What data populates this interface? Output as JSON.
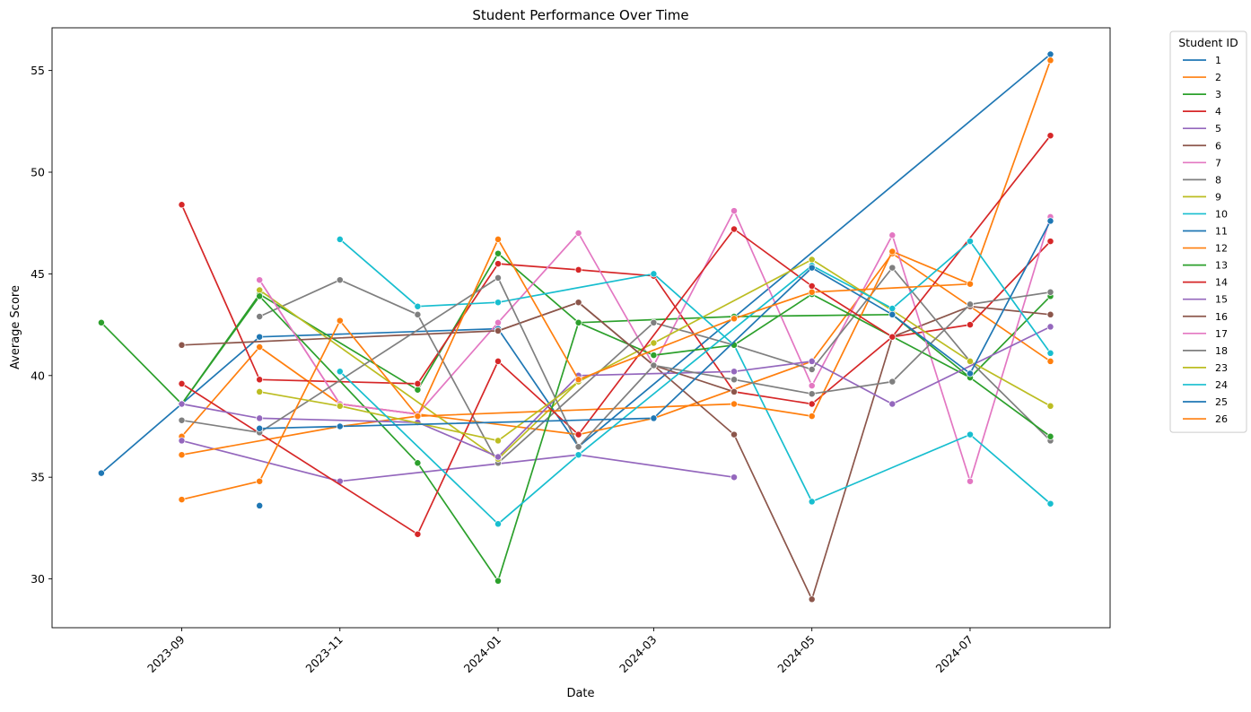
{
  "chart_data": {
    "type": "line",
    "title": "Student Performance Over Time",
    "xlabel": "Date",
    "ylabel": "Average Score",
    "x_tick_labels": [
      "2023-09",
      "2023-11",
      "2024-01",
      "2024-03",
      "2024-05",
      "2024-07"
    ],
    "x_tick_dates": [
      "2023-09-01",
      "2023-11-01",
      "2024-01-01",
      "2024-03-01",
      "2024-05-01",
      "2024-07-01"
    ],
    "y_ticks": [
      30,
      35,
      40,
      45,
      50,
      55
    ],
    "xlim": [
      "2023-07-13",
      "2024-08-24"
    ],
    "ylim": [
      27.6,
      57.1
    ],
    "grid": false,
    "marker": "circle",
    "legend": {
      "title": "Student ID",
      "placement": "outside-right"
    },
    "series": [
      {
        "name": "1",
        "color": "#1f77b4",
        "points": [
          [
            "2023-08-01",
            35.2
          ],
          [
            "2023-10-01",
            41.9
          ],
          [
            "2024-01-01",
            42.3
          ],
          [
            "2024-02-01",
            36.5
          ],
          [
            "2024-08-01",
            55.8
          ]
        ]
      },
      {
        "name": "2",
        "color": "#ff7f0e",
        "points": [
          [
            "2023-09-01",
            37.0
          ],
          [
            "2023-10-01",
            41.4
          ],
          [
            "2023-11-01",
            38.6
          ],
          [
            "2023-12-01",
            38.1
          ],
          [
            "2024-02-01",
            37.1
          ],
          [
            "2024-03-01",
            37.9
          ],
          [
            "2024-05-01",
            40.7
          ],
          [
            "2024-06-01",
            46.0
          ],
          [
            "2024-07-01",
            43.4
          ],
          [
            "2024-08-01",
            40.7
          ]
        ]
      },
      {
        "name": "3",
        "color": "#2ca02c",
        "points": [
          [
            "2023-08-01",
            42.6
          ],
          [
            "2023-09-01",
            38.6
          ],
          [
            "2023-10-01",
            44.0
          ],
          [
            "2023-12-01",
            39.3
          ],
          [
            "2024-01-01",
            46.0
          ],
          [
            "2024-02-01",
            42.6
          ],
          [
            "2024-04-01",
            42.9
          ],
          [
            "2024-06-01",
            43.0
          ],
          [
            "2024-07-01",
            39.9
          ],
          [
            "2024-08-01",
            43.9
          ]
        ]
      },
      {
        "name": "4",
        "color": "#d62728",
        "points": [
          [
            "2023-09-01",
            48.4
          ],
          [
            "2023-10-01",
            39.8
          ],
          [
            "2023-12-01",
            39.6
          ],
          [
            "2024-01-01",
            45.5
          ],
          [
            "2024-02-01",
            45.2
          ],
          [
            "2024-03-01",
            44.9
          ],
          [
            "2024-04-01",
            39.2
          ],
          [
            "2024-05-01",
            38.6
          ],
          [
            "2024-06-01",
            41.9
          ],
          [
            "2024-07-01",
            42.5
          ],
          [
            "2024-08-01",
            46.6
          ]
        ]
      },
      {
        "name": "5",
        "color": "#9467bd",
        "points": [
          [
            "2023-09-01",
            36.8
          ],
          [
            "2023-11-01",
            34.8
          ],
          [
            "2024-02-01",
            36.1
          ],
          [
            "2024-04-01",
            35.0
          ]
        ]
      },
      {
        "name": "6",
        "color": "#8c564b",
        "points": [
          [
            "2024-01-01",
            42.2
          ],
          [
            "2024-02-01",
            43.6
          ],
          [
            "2024-03-01",
            40.5
          ],
          [
            "2024-04-01",
            37.1
          ],
          [
            "2024-05-01",
            29.0
          ],
          [
            "2024-06-01",
            41.9
          ],
          [
            "2024-07-01",
            43.4
          ],
          [
            "2024-08-01",
            43.0
          ]
        ]
      },
      {
        "name": "7",
        "color": "#e377c2",
        "points": [
          [
            "2023-10-01",
            44.7
          ],
          [
            "2023-11-01",
            38.6
          ],
          [
            "2023-12-01",
            38.1
          ],
          [
            "2024-01-01",
            42.6
          ],
          [
            "2024-02-01",
            47.0
          ],
          [
            "2024-03-01",
            40.5
          ],
          [
            "2024-04-01",
            48.1
          ],
          [
            "2024-05-01",
            39.5
          ],
          [
            "2024-06-01",
            46.9
          ],
          [
            "2024-07-01",
            34.8
          ],
          [
            "2024-08-01",
            47.8
          ]
        ]
      },
      {
        "name": "8",
        "color": "#7f7f7f",
        "points": [
          [
            "2023-10-01",
            42.9
          ],
          [
            "2023-11-01",
            44.7
          ],
          [
            "2023-12-01",
            43.0
          ],
          [
            "2024-01-01",
            35.7
          ],
          [
            "2024-03-01",
            42.6
          ],
          [
            "2024-04-01",
            41.5
          ],
          [
            "2024-05-01",
            40.3
          ],
          [
            "2024-06-01",
            45.3
          ],
          [
            "2024-07-01",
            40.7
          ],
          [
            "2024-08-01",
            36.8
          ]
        ]
      },
      {
        "name": "9",
        "color": "#bcbd22",
        "points": [
          [
            "2023-10-01",
            44.2
          ],
          [
            "2024-01-01",
            35.9
          ],
          [
            "2024-02-01",
            39.7
          ],
          [
            "2024-03-01",
            41.6
          ],
          [
            "2024-05-01",
            45.7
          ],
          [
            "2024-06-01",
            43.2
          ],
          [
            "2024-07-01",
            40.7
          ],
          [
            "2024-08-01",
            38.5
          ]
        ]
      },
      {
        "name": "10",
        "color": "#17becf",
        "points": [
          [
            "2023-11-01",
            46.7
          ],
          [
            "2023-12-01",
            43.4
          ],
          [
            "2024-01-01",
            43.6
          ],
          [
            "2024-03-01",
            45.0
          ],
          [
            "2024-04-01",
            41.5
          ],
          [
            "2024-05-01",
            33.8
          ],
          [
            "2024-07-01",
            37.1
          ],
          [
            "2024-08-01",
            33.7
          ]
        ]
      },
      {
        "name": "11",
        "color": "#1f77b4",
        "points": [
          [
            "2023-10-01",
            33.6
          ]
        ]
      },
      {
        "name": "12",
        "color": "#ff7f0e",
        "points": [
          [
            "2023-09-01",
            36.1
          ],
          [
            "2023-11-01",
            37.5
          ],
          [
            "2023-12-01",
            38.0
          ],
          [
            "2024-04-01",
            38.6
          ],
          [
            "2024-05-01",
            38.0
          ],
          [
            "2024-06-01",
            46.1
          ],
          [
            "2024-07-01",
            44.5
          ],
          [
            "2024-08-01",
            55.5
          ]
        ]
      },
      {
        "name": "13",
        "color": "#2ca02c",
        "points": [
          [
            "2023-09-01",
            38.6
          ],
          [
            "2023-10-01",
            43.9
          ],
          [
            "2023-12-01",
            35.7
          ],
          [
            "2024-01-01",
            29.9
          ],
          [
            "2024-02-01",
            42.6
          ],
          [
            "2024-03-01",
            41.0
          ],
          [
            "2024-04-01",
            41.5
          ],
          [
            "2024-05-01",
            44.0
          ],
          [
            "2024-07-01",
            39.9
          ],
          [
            "2024-08-01",
            37.0
          ]
        ]
      },
      {
        "name": "14",
        "color": "#d62728",
        "points": [
          [
            "2023-09-01",
            39.6
          ],
          [
            "2023-12-01",
            32.2
          ],
          [
            "2024-01-01",
            40.7
          ],
          [
            "2024-02-01",
            37.1
          ],
          [
            "2024-04-01",
            47.2
          ],
          [
            "2024-05-01",
            44.4
          ],
          [
            "2024-06-01",
            41.9
          ],
          [
            "2024-08-01",
            51.8
          ]
        ]
      },
      {
        "name": "15",
        "color": "#9467bd",
        "points": [
          [
            "2023-09-01",
            38.6
          ],
          [
            "2023-10-01",
            37.9
          ],
          [
            "2023-12-01",
            37.7
          ],
          [
            "2024-01-01",
            36.0
          ],
          [
            "2024-02-01",
            40.0
          ],
          [
            "2024-04-01",
            40.2
          ],
          [
            "2024-05-01",
            40.7
          ],
          [
            "2024-06-01",
            38.6
          ],
          [
            "2024-08-01",
            42.4
          ]
        ]
      },
      {
        "name": "16",
        "color": "#8c564b",
        "points": [
          [
            "2023-09-01",
            41.5
          ],
          [
            "2024-01-01",
            42.2
          ],
          [
            "2024-02-01",
            43.6
          ],
          [
            "2024-03-01",
            40.5
          ],
          [
            "2024-04-01",
            39.2
          ]
        ]
      },
      {
        "name": "17",
        "color": "#e377c2",
        "points": [
          [
            "2023-10-01",
            44.7
          ],
          [
            "2023-11-01",
            38.6
          ],
          [
            "2023-12-01",
            38.1
          ]
        ]
      },
      {
        "name": "18",
        "color": "#7f7f7f",
        "points": [
          [
            "2023-09-01",
            37.8
          ],
          [
            "2023-10-01",
            37.2
          ],
          [
            "2024-01-01",
            44.8
          ],
          [
            "2024-02-01",
            36.5
          ],
          [
            "2024-03-01",
            40.5
          ],
          [
            "2024-04-01",
            39.8
          ],
          [
            "2024-05-01",
            39.1
          ],
          [
            "2024-06-01",
            39.7
          ],
          [
            "2024-07-01",
            43.5
          ],
          [
            "2024-08-01",
            44.1
          ]
        ]
      },
      {
        "name": "23",
        "color": "#bcbd22",
        "points": [
          [
            "2023-10-01",
            39.2
          ],
          [
            "2023-11-01",
            38.5
          ],
          [
            "2024-01-01",
            36.8
          ],
          [
            "2024-02-01",
            39.7
          ]
        ]
      },
      {
        "name": "24",
        "color": "#17becf",
        "points": [
          [
            "2023-11-01",
            40.2
          ],
          [
            "2024-01-01",
            32.7
          ],
          [
            "2024-02-01",
            36.1
          ],
          [
            "2024-05-01",
            45.4
          ],
          [
            "2024-06-01",
            43.3
          ],
          [
            "2024-07-01",
            46.6
          ],
          [
            "2024-08-01",
            41.1
          ]
        ]
      },
      {
        "name": "25",
        "color": "#1f77b4",
        "points": [
          [
            "2023-10-01",
            37.4
          ],
          [
            "2023-11-01",
            37.5
          ],
          [
            "2024-03-01",
            37.9
          ],
          [
            "2024-05-01",
            45.3
          ],
          [
            "2024-06-01",
            43.0
          ],
          [
            "2024-07-01",
            40.1
          ],
          [
            "2024-08-01",
            47.6
          ]
        ]
      },
      {
        "name": "26",
        "color": "#ff7f0e",
        "points": [
          [
            "2023-09-01",
            33.9
          ],
          [
            "2023-10-01",
            34.8
          ],
          [
            "2023-11-01",
            42.7
          ],
          [
            "2023-12-01",
            38.0
          ],
          [
            "2024-01-01",
            46.7
          ],
          [
            "2024-02-01",
            39.8
          ],
          [
            "2024-04-01",
            42.8
          ],
          [
            "2024-05-01",
            44.1
          ],
          [
            "2024-07-01",
            44.5
          ]
        ]
      }
    ]
  }
}
